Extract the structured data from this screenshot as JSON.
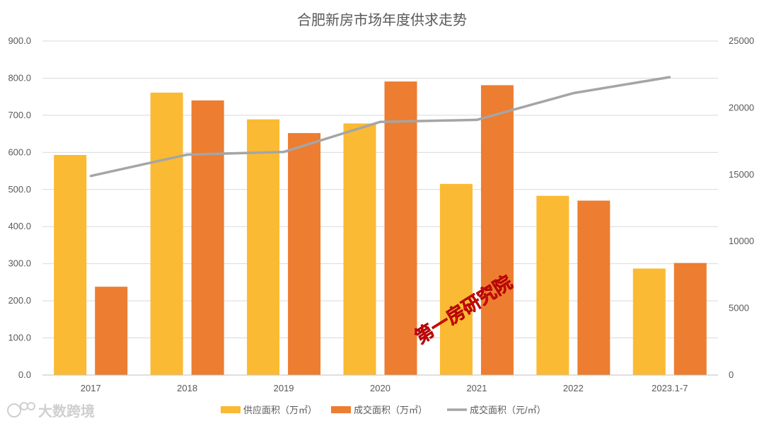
{
  "chart_data": {
    "type": "bar",
    "title": "合肥新房市场年度供求走势",
    "categories": [
      "2017",
      "2018",
      "2019",
      "2020",
      "2021",
      "2022",
      "2023.1-7"
    ],
    "series": [
      {
        "name": "供应面积（万㎡）",
        "axis": "left",
        "kind": "bar",
        "color": "#FBBA33",
        "values": [
          593,
          761,
          689,
          678,
          515,
          483,
          287
        ]
      },
      {
        "name": "成交面积（万㎡）",
        "axis": "left",
        "kind": "bar",
        "color": "#ED7D31",
        "values": [
          238,
          740,
          652,
          791,
          781,
          470,
          302
        ]
      },
      {
        "name": "成交面积（元/㎡）",
        "axis": "right",
        "kind": "line",
        "color": "#A5A5A5",
        "values": [
          14900,
          16500,
          16700,
          18950,
          19100,
          21100,
          22300
        ]
      }
    ],
    "y_left": {
      "min": 0,
      "max": 900,
      "step": 100,
      "ticks": [
        "0.0",
        "100.0",
        "200.0",
        "300.0",
        "400.0",
        "500.0",
        "600.0",
        "700.0",
        "800.0",
        "900.0"
      ]
    },
    "y_right": {
      "min": 0,
      "max": 25000,
      "step": 5000,
      "ticks": [
        "0",
        "5000",
        "10000",
        "15000",
        "20000",
        "25000"
      ]
    },
    "grid": true,
    "legend_position": "bottom"
  },
  "watermark": {
    "text": "第一房研究院",
    "color": "#FF2A2A"
  },
  "logo": {
    "text": "大数跨境"
  }
}
